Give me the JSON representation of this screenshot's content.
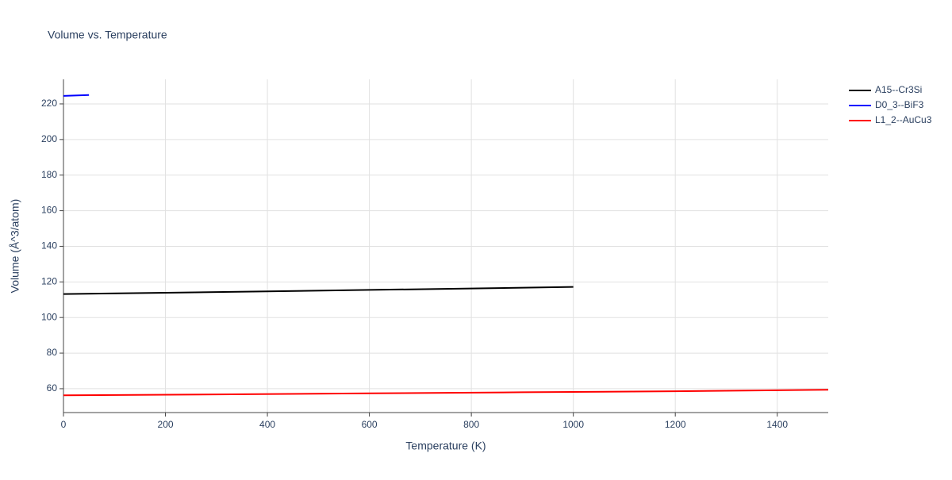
{
  "chart_data": {
    "type": "line",
    "title": "Volume vs. Temperature",
    "x_label": "Temperature (K)",
    "y_label": "Volume (Å^3/atom)",
    "xlim": [
      0,
      1500
    ],
    "xticks": [
      0,
      200,
      400,
      600,
      800,
      1000,
      1200,
      1400
    ],
    "ylim": [
      46.6,
      233.8
    ],
    "yticks": [
      60,
      80,
      100,
      120,
      140,
      160,
      180,
      200,
      220
    ],
    "grid": true,
    "legend": "right",
    "series": [
      {
        "name": "A15--Cr3Si",
        "color": "#000000",
        "x": [
          0,
          200,
          400,
          600,
          800,
          1000
        ],
        "values": [
          113.2,
          113.9,
          114.7,
          115.5,
          116.3,
          117.2
        ]
      },
      {
        "name": "D0_3--BiF3",
        "color": "#0000ff",
        "x": [
          0,
          50
        ],
        "values": [
          224.5,
          225.0
        ]
      },
      {
        "name": "L1_2--AuCu3",
        "color": "#ff0000",
        "x": [
          0,
          300,
          600,
          900,
          1200,
          1500
        ],
        "values": [
          56.3,
          56.8,
          57.4,
          58.0,
          58.6,
          59.4
        ]
      }
    ]
  }
}
